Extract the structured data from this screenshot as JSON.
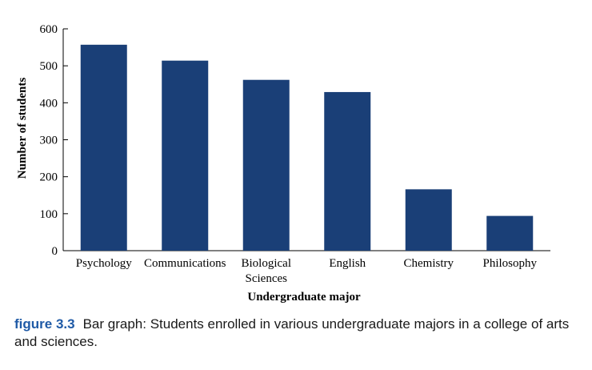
{
  "chart_data": {
    "type": "bar",
    "categories": [
      "Psychology",
      "Communications",
      "Biological Sciences",
      "English",
      "Chemistry",
      "Philosophy"
    ],
    "category_lines": [
      [
        "Psychology"
      ],
      [
        "Communications"
      ],
      [
        "Biological",
        "Sciences"
      ],
      [
        "English"
      ],
      [
        "Chemistry"
      ],
      [
        "Philosophy"
      ]
    ],
    "values": [
      557,
      514,
      462,
      429,
      166,
      94
    ],
    "title": "",
    "xlabel": "Undergraduate major",
    "ylabel": "Number of students",
    "ylim": [
      0,
      600
    ],
    "yticks": [
      0,
      100,
      200,
      300,
      400,
      500,
      600
    ],
    "grid": false,
    "bar_color": "#1a3f77"
  },
  "caption": {
    "label": "figure 3.3",
    "text": "Bar graph: Students enrolled in various undergraduate majors in a college of arts and sciences."
  }
}
